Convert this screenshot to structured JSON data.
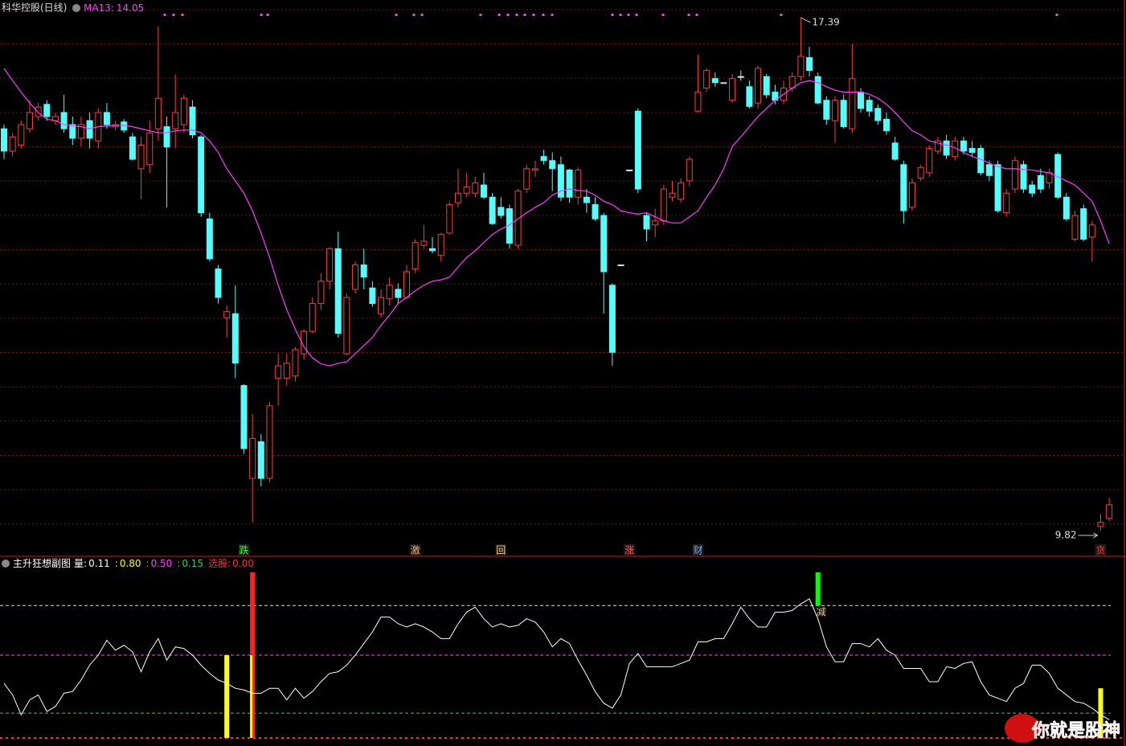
{
  "title": "科华控股(日线)",
  "watermark": "你就是股神",
  "chart_data": [
    {
      "type": "candlestick",
      "up_color": "#ff3c3c",
      "down_color": "#54fcfc",
      "flat_color": "#e0e0e0",
      "ylim": [
        9.44,
        17.65
      ],
      "grid": true,
      "ohlc": [
        [
          15.75,
          15.81,
          15.3,
          15.42
        ],
        [
          15.42,
          15.69,
          15.34,
          15.63
        ],
        [
          15.51,
          15.87,
          15.46,
          15.81
        ],
        [
          15.75,
          16.17,
          15.69,
          15.99
        ],
        [
          15.93,
          16.13,
          15.87,
          16.07
        ],
        [
          16.11,
          16.17,
          15.87,
          15.93
        ],
        [
          15.87,
          15.99,
          15.81,
          15.93
        ],
        [
          15.99,
          16.25,
          15.69,
          15.75
        ],
        [
          15.81,
          15.93,
          15.51,
          15.61
        ],
        [
          15.61,
          15.93,
          15.49,
          15.81
        ],
        [
          15.87,
          15.99,
          15.46,
          15.61
        ],
        [
          15.57,
          16.05,
          15.46,
          15.99
        ],
        [
          15.99,
          16.13,
          15.75,
          15.81
        ],
        [
          15.78,
          15.87,
          15.73,
          15.81
        ],
        [
          15.85,
          15.89,
          15.69,
          15.73
        ],
        [
          15.63,
          15.69,
          15.28,
          15.3
        ],
        [
          15.16,
          15.63,
          14.71,
          15.51
        ],
        [
          15.22,
          15.87,
          15.1,
          15.69
        ],
        [
          15.75,
          17.26,
          15.57,
          16.2
        ],
        [
          15.78,
          15.93,
          14.59,
          15.48
        ],
        [
          15.75,
          16.55,
          15.46,
          15.99
        ],
        [
          15.81,
          16.25,
          15.69,
          16.2
        ],
        [
          16.07,
          16.17,
          15.61,
          15.66
        ],
        [
          15.63,
          15.66,
          14.45,
          14.51
        ],
        [
          14.42,
          14.51,
          13.79,
          13.83
        ],
        [
          13.68,
          13.74,
          13.17,
          13.26
        ],
        [
          12.96,
          13.14,
          12.67,
          13.05
        ],
        [
          13.02,
          13.44,
          12.07,
          12.29
        ],
        [
          11.96,
          11.98,
          10.95,
          11.03
        ],
        [
          10.59,
          11.54,
          9.94,
          11.18
        ],
        [
          11.13,
          11.24,
          10.47,
          10.59
        ],
        [
          10.59,
          11.72,
          10.53,
          11.66
        ],
        [
          12.07,
          12.43,
          11.66,
          12.25
        ],
        [
          12.07,
          12.43,
          11.96,
          12.29
        ],
        [
          12.1,
          12.53,
          12.02,
          12.49
        ],
        [
          12.43,
          12.79,
          12.34,
          12.76
        ],
        [
          12.76,
          13.26,
          12.73,
          13.17
        ],
        [
          13.17,
          13.62,
          13.08,
          13.5
        ],
        [
          13.5,
          14.0,
          13.38,
          13.98
        ],
        [
          13.98,
          14.23,
          12.67,
          12.73
        ],
        [
          12.43,
          13.32,
          12.41,
          13.26
        ],
        [
          13.38,
          13.79,
          13.32,
          13.74
        ],
        [
          13.74,
          13.98,
          13.38,
          13.56
        ],
        [
          13.4,
          13.5,
          13.12,
          13.17
        ],
        [
          13.02,
          13.38,
          12.96,
          13.26
        ],
        [
          13.24,
          13.56,
          13.14,
          13.44
        ],
        [
          13.38,
          13.47,
          13.17,
          13.26
        ],
        [
          13.26,
          13.74,
          13.24,
          13.64
        ],
        [
          13.68,
          14.12,
          13.62,
          14.07
        ],
        [
          14.03,
          14.33,
          13.98,
          14.09
        ],
        [
          13.98,
          14.15,
          13.91,
          13.95
        ],
        [
          13.88,
          14.21,
          13.79,
          14.19
        ],
        [
          14.21,
          14.68,
          14.19,
          14.63
        ],
        [
          14.66,
          15.16,
          14.59,
          14.8
        ],
        [
          14.8,
          15.1,
          14.74,
          14.89
        ],
        [
          14.8,
          15.04,
          14.74,
          14.95
        ],
        [
          14.92,
          15.1,
          14.71,
          14.74
        ],
        [
          14.74,
          14.8,
          14.33,
          14.35
        ],
        [
          14.59,
          14.74,
          14.42,
          14.47
        ],
        [
          14.57,
          14.63,
          13.98,
          14.06
        ],
        [
          14.03,
          14.86,
          13.98,
          14.83
        ],
        [
          14.86,
          15.22,
          14.8,
          15.16
        ],
        [
          15.14,
          15.28,
          15.04,
          15.16
        ],
        [
          15.34,
          15.44,
          15.22,
          15.28
        ],
        [
          15.28,
          15.4,
          14.83,
          15.16
        ],
        [
          15.22,
          15.34,
          14.68,
          14.74
        ],
        [
          15.14,
          15.16,
          14.66,
          14.74
        ],
        [
          14.74,
          15.18,
          14.63,
          15.14
        ],
        [
          14.74,
          14.86,
          14.51,
          14.66
        ],
        [
          14.63,
          14.74,
          14.39,
          14.42
        ],
        [
          14.47,
          14.51,
          13.02,
          13.64
        ],
        [
          13.44,
          13.47,
          12.25,
          12.45
        ],
        [
          13.74,
          13.74,
          13.74,
          13.74
        ],
        [
          15.14,
          15.14,
          15.14,
          15.14
        ],
        [
          16.01,
          16.05,
          14.8,
          14.86
        ],
        [
          14.47,
          14.51,
          14.09,
          14.27
        ],
        [
          14.33,
          14.57,
          14.15,
          14.39
        ],
        [
          14.39,
          14.92,
          14.33,
          14.86
        ],
        [
          14.74,
          14.98,
          14.68,
          14.8
        ],
        [
          14.71,
          15.02,
          14.66,
          14.95
        ],
        [
          14.98,
          15.34,
          14.9,
          15.3
        ],
        [
          16.01,
          16.84,
          15.99,
          16.29
        ],
        [
          16.35,
          16.64,
          16.29,
          16.61
        ],
        [
          16.49,
          16.58,
          16.37,
          16.43
        ],
        [
          16.43,
          16.43,
          16.43,
          16.43
        ],
        [
          16.17,
          16.56,
          16.13,
          16.49
        ],
        [
          16.52,
          16.61,
          16.46,
          16.52
        ],
        [
          16.37,
          16.46,
          16.05,
          16.08
        ],
        [
          16.13,
          16.68,
          16.05,
          16.64
        ],
        [
          16.52,
          16.56,
          16.2,
          16.25
        ],
        [
          16.29,
          16.4,
          16.11,
          16.17
        ],
        [
          16.17,
          16.46,
          16.11,
          16.35
        ],
        [
          16.35,
          16.58,
          16.29,
          16.52
        ],
        [
          16.52,
          17.39,
          16.46,
          16.82
        ],
        [
          16.8,
          16.96,
          16.52,
          16.61
        ],
        [
          16.52,
          16.58,
          16.11,
          16.13
        ],
        [
          16.17,
          16.23,
          15.81,
          15.89
        ],
        [
          15.87,
          16.23,
          15.54,
          16.17
        ],
        [
          16.17,
          16.25,
          15.75,
          15.78
        ],
        [
          15.75,
          17.0,
          15.69,
          16.49
        ],
        [
          16.29,
          16.35,
          15.99,
          16.05
        ],
        [
          16.17,
          16.23,
          15.93,
          16.01
        ],
        [
          16.05,
          16.11,
          15.81,
          15.87
        ],
        [
          15.89,
          15.99,
          15.66,
          15.72
        ],
        [
          15.54,
          15.63,
          15.28,
          15.3
        ],
        [
          15.22,
          15.28,
          14.35,
          14.54
        ],
        [
          14.59,
          15.02,
          14.54,
          14.95
        ],
        [
          15.02,
          15.22,
          14.98,
          15.18
        ],
        [
          15.1,
          15.51,
          15.04,
          15.46
        ],
        [
          15.42,
          15.63,
          15.37,
          15.57
        ],
        [
          15.57,
          15.66,
          15.3,
          15.36
        ],
        [
          15.34,
          15.63,
          15.28,
          15.57
        ],
        [
          15.57,
          15.63,
          15.37,
          15.42
        ],
        [
          15.46,
          15.57,
          15.34,
          15.4
        ],
        [
          15.46,
          15.51,
          15.06,
          15.1
        ],
        [
          15.22,
          15.28,
          14.98,
          15.06
        ],
        [
          15.22,
          15.28,
          14.51,
          14.54
        ],
        [
          14.51,
          14.86,
          14.45,
          14.8
        ],
        [
          14.86,
          15.34,
          14.8,
          15.28
        ],
        [
          15.22,
          15.28,
          14.8,
          14.86
        ],
        [
          14.92,
          14.98,
          14.74,
          14.8
        ],
        [
          15.06,
          15.16,
          14.8,
          14.86
        ],
        [
          14.95,
          15.16,
          14.86,
          15.1
        ],
        [
          15.37,
          15.4,
          14.71,
          14.74
        ],
        [
          14.74,
          14.8,
          14.39,
          14.42
        ],
        [
          14.12,
          14.54,
          14.09,
          14.47
        ],
        [
          14.57,
          14.63,
          14.09,
          14.12
        ],
        [
          14.15,
          14.39,
          13.79,
          14.33
        ],
        [
          9.88,
          10.06,
          9.82,
          9.94
        ],
        [
          10.0,
          10.3,
          9.96,
          10.2
        ]
      ],
      "ma": {
        "name": "MA13:",
        "color": "#ff3cff",
        "values": [
          16.64,
          16.46,
          16.29,
          16.13,
          15.99,
          15.89,
          15.87,
          15.81,
          15.79,
          15.78,
          15.75,
          15.78,
          15.79,
          15.8,
          15.8,
          15.78,
          15.75,
          15.72,
          15.69,
          15.69,
          15.72,
          15.73,
          15.73,
          15.69,
          15.57,
          15.4,
          15.16,
          14.98,
          14.8,
          14.54,
          14.21,
          13.85,
          13.44,
          13.08,
          12.79,
          12.53,
          12.37,
          12.28,
          12.25,
          12.29,
          12.31,
          12.43,
          12.55,
          12.67,
          12.85,
          13.0,
          13.17,
          13.26,
          13.36,
          13.44,
          13.5,
          13.52,
          13.56,
          13.71,
          13.85,
          13.95,
          14.07,
          14.19,
          14.27,
          14.33,
          14.42,
          14.51,
          14.59,
          14.66,
          14.77,
          14.83,
          14.86,
          14.84,
          14.83,
          14.77,
          14.68,
          14.63,
          14.54,
          14.51,
          14.49,
          14.51,
          14.45,
          14.39,
          14.36,
          14.36,
          14.45,
          14.54,
          14.74,
          14.92,
          15.16,
          15.49,
          15.63,
          15.78,
          15.93,
          16.05,
          16.17,
          16.26,
          16.35,
          16.43,
          16.46,
          16.43,
          16.37,
          16.32,
          16.29,
          16.29,
          16.29,
          16.26,
          16.2,
          16.11,
          15.99,
          15.85,
          15.72,
          15.66,
          15.57,
          15.54,
          15.51,
          15.47,
          15.4,
          15.34,
          15.3,
          15.24,
          15.19,
          15.16,
          15.16,
          15.15,
          15.14,
          15.12,
          15.1,
          15.04,
          14.98,
          14.92,
          14.8,
          14.68,
          14.39,
          14.05
        ]
      },
      "signals": [
        {
          "label": "跌",
          "x": 28,
          "color": "#30ff30"
        },
        {
          "label": "激",
          "x": 48,
          "color": "#ffb070"
        },
        {
          "label": "回",
          "x": 58,
          "color": "#ffd070"
        },
        {
          "label": "涨",
          "x": 73,
          "color": "#ff6060"
        },
        {
          "label": "财",
          "x": 81,
          "color": "#6ab0ff"
        },
        {
          "label": "贪",
          "x": 128,
          "color": "#ff3030"
        }
      ]
    },
    {
      "type": "indicator",
      "title": "主升狂想副图",
      "ylim": [
        0,
        1
      ],
      "series": [
        {
          "label": "量:",
          "color": "#ffffff",
          "values": [
            0.33,
            0.26,
            0.14,
            0.23,
            0.26,
            0.16,
            0.19,
            0.27,
            0.28,
            0.35,
            0.44,
            0.5,
            0.59,
            0.53,
            0.56,
            0.52,
            0.4,
            0.52,
            0.6,
            0.47,
            0.55,
            0.54,
            0.5,
            0.44,
            0.39,
            0.35,
            0.33,
            0.3,
            0.29,
            0.27,
            0.27,
            0.3,
            0.3,
            0.23,
            0.3,
            0.24,
            0.28,
            0.34,
            0.39,
            0.4,
            0.44,
            0.5,
            0.57,
            0.64,
            0.73,
            0.73,
            0.69,
            0.67,
            0.69,
            0.67,
            0.64,
            0.6,
            0.6,
            0.69,
            0.76,
            0.79,
            0.72,
            0.67,
            0.69,
            0.67,
            0.68,
            0.72,
            0.7,
            0.64,
            0.55,
            0.6,
            0.57,
            0.47,
            0.38,
            0.28,
            0.21,
            0.18,
            0.26,
            0.45,
            0.51,
            0.43,
            0.43,
            0.43,
            0.43,
            0.45,
            0.47,
            0.58,
            0.58,
            0.6,
            0.6,
            0.69,
            0.79,
            0.72,
            0.67,
            0.67,
            0.76,
            0.76,
            0.77,
            0.81,
            0.84,
            0.72,
            0.55,
            0.46,
            0.46,
            0.57,
            0.57,
            0.55,
            0.6,
            0.53,
            0.5,
            0.42,
            0.42,
            0.42,
            0.34,
            0.34,
            0.43,
            0.42,
            0.45,
            0.46,
            0.34,
            0.26,
            0.24,
            0.22,
            0.3,
            0.33,
            0.44,
            0.44,
            0.39,
            0.3,
            0.26,
            0.22,
            0.21,
            0.18,
            0.14,
            0.11
          ]
        }
      ],
      "levels": [
        {
          "label": ":",
          "value": 0.8,
          "value_label": "0.80",
          "color": "#e8e8a0"
        },
        {
          "label": ":",
          "value": 0.5,
          "value_label": "0.50",
          "color": "#ff40ff"
        },
        {
          "label": ":",
          "value": 0.15,
          "color": "#40d040"
        },
        {
          "label": "选股:",
          "value": 0,
          "value_label": "0.00",
          "color": "#ff3030"
        }
      ],
      "bars": [
        {
          "x": 26,
          "values": [
            0,
            0.5
          ],
          "color": "#ffff00"
        },
        {
          "x": 29,
          "values": [
            0,
            1
          ],
          "color": "#ff2020"
        },
        {
          "x": 29,
          "values": [
            0,
            0.5
          ],
          "color": "#ffff00"
        },
        {
          "x": 95,
          "values": [
            0.8,
            1
          ],
          "color": "#00ff00",
          "label": "减"
        },
        {
          "x": 128,
          "values": [
            0,
            0.3
          ],
          "color": "#ffff00"
        }
      ]
    }
  ]
}
